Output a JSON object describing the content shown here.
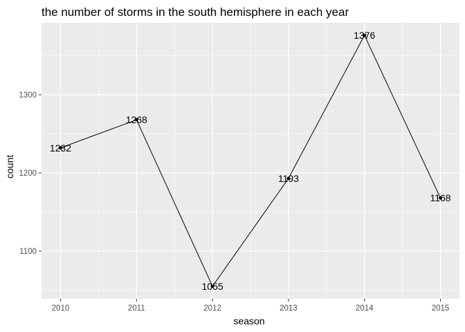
{
  "chart_data": {
    "type": "line",
    "title": "the number of storms in the south hemisphere in each year",
    "xlabel": "season",
    "ylabel": "count",
    "x": [
      2010,
      2011,
      2012,
      2013,
      2014,
      2015
    ],
    "values": [
      1232,
      1268,
      1055,
      1193,
      1376,
      1168
    ],
    "data_labels": [
      "1232",
      "1268",
      "1055",
      "1193",
      "1376",
      "1168"
    ],
    "x_tick_labels": [
      "2010",
      "2011",
      "2012",
      "2013",
      "2014",
      "2015"
    ],
    "y_ticks": [
      1100,
      1200,
      1300
    ],
    "y_tick_labels": [
      "1100",
      "1200",
      "1300"
    ],
    "xlim": [
      2009.75,
      2015.25
    ],
    "ylim": [
      1039,
      1392
    ],
    "grid": true,
    "legend": "none",
    "colors": {
      "panel": "#ebebeb",
      "grid": "#ffffff",
      "line": "#000000",
      "point": "#000000",
      "tick_text": "#4d4d4d"
    }
  }
}
